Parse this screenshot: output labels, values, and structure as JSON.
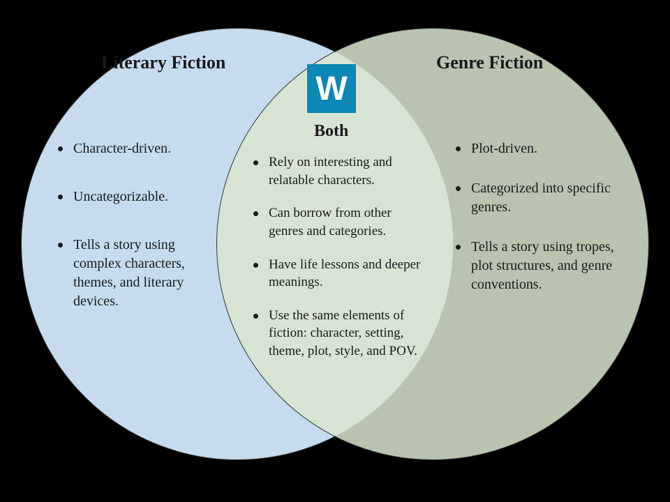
{
  "diagram": {
    "type": "venn",
    "background_color": "#000000",
    "left": {
      "title": "Literary Fiction",
      "fill_color": "#c6dcee",
      "items": [
        "Character-driven.",
        "Uncategorizable.",
        "Tells a story using complex characters, themes, and literary devices."
      ]
    },
    "right": {
      "title": "Genre Fiction",
      "fill_color": "#d9e5ce",
      "items": [
        "Plot-driven.",
        "Categorized into specific genres.",
        "Tells a story using tropes, plot structures, and genre conventions."
      ]
    },
    "center": {
      "title": "Both",
      "items": [
        "Rely on interesting and relatable characters.",
        "Can borrow from other genres and categories.",
        "Have life lessons and deeper meanings.",
        "Use the same elements of fiction: character, setting, theme, plot, style, and POV."
      ]
    },
    "logo": {
      "letter": "W",
      "bg_color": "#0d87b5",
      "text_color": "#ffffff"
    },
    "title_fontsize": 26,
    "center_title_fontsize": 24,
    "item_fontsize": 20,
    "text_color": "#1a1a1a"
  }
}
